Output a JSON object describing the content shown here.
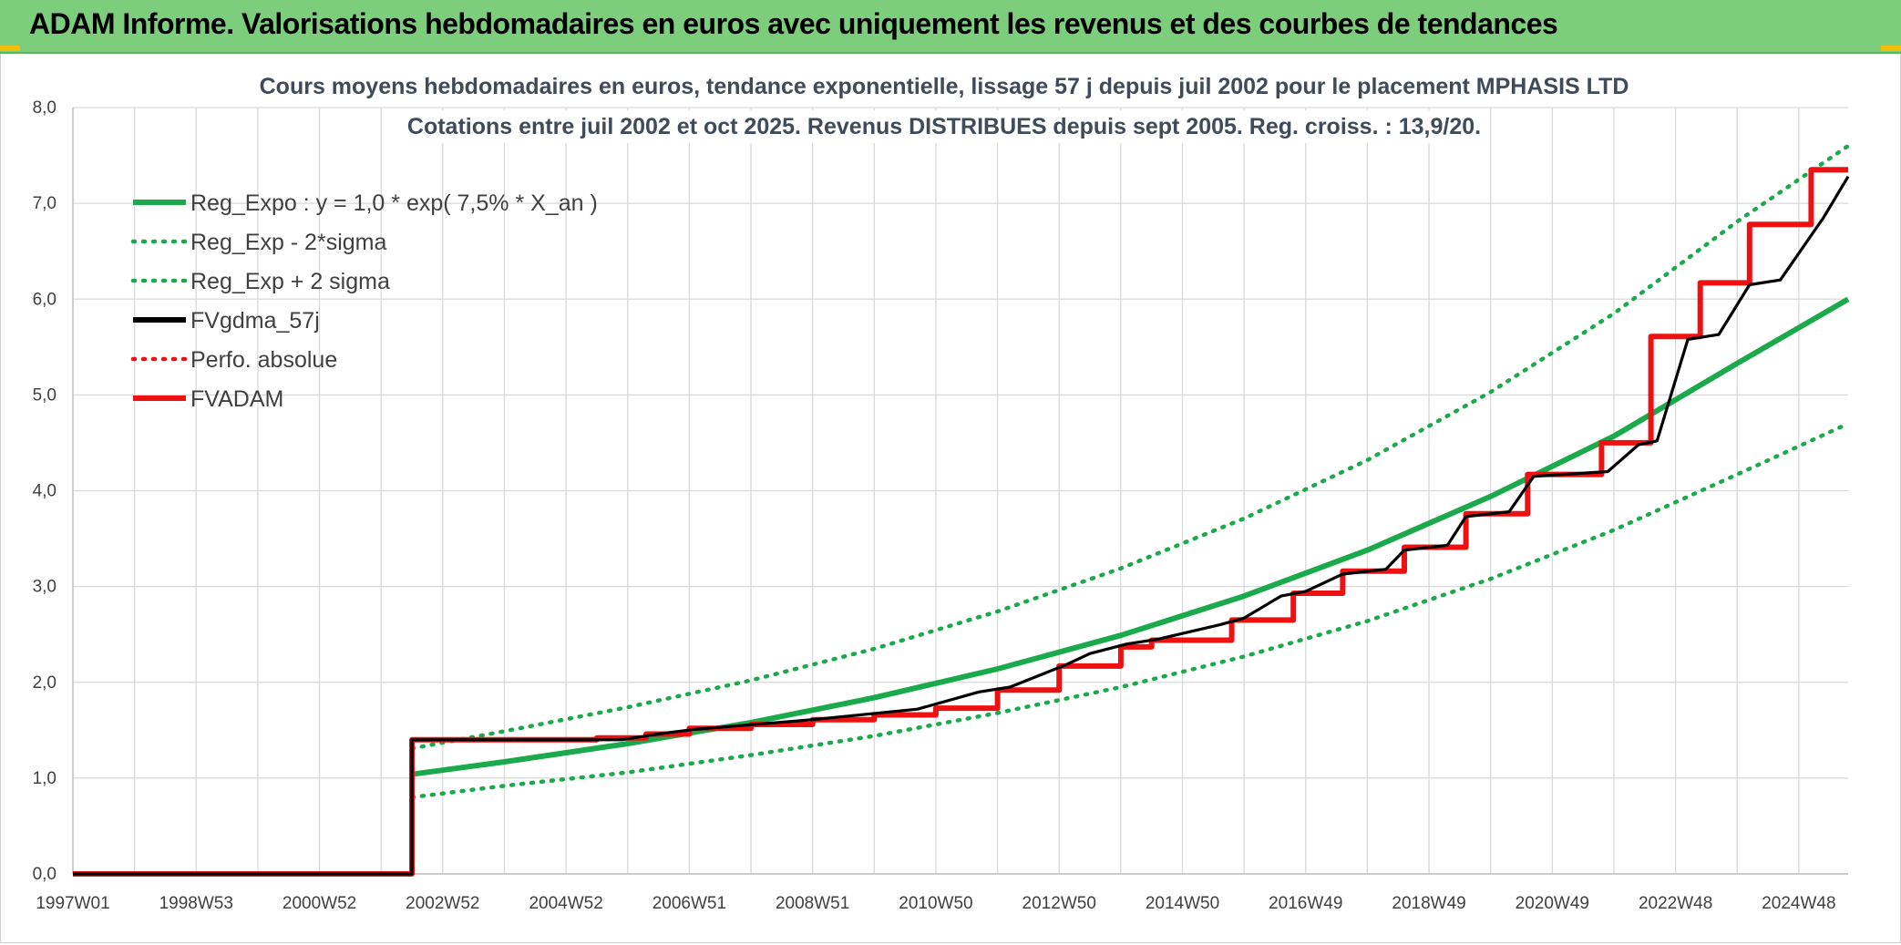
{
  "banner": {
    "title": "ADAM Informe. Valorisations hebdomadaires en euros avec uniquement les revenus et des courbes de tendances"
  },
  "colors": {
    "banner_bg": "#7ccd7c",
    "reg_expo": "#1aaa4b",
    "fv_gdma": "#000000",
    "fv_adam": "#ee1111",
    "perfo": "#ee1111",
    "grid": "#d9d9d9"
  },
  "chart_data": {
    "type": "line",
    "title": "Cours moyens hebdomadaires en euros, tendance exponentielle, lissage 57 j depuis juil 2002 pour le placement MPHASIS LTD",
    "subtitle": "Cotations entre juil 2002 et oct 2025. Revenus DISTRIBUES depuis sept 2005. Reg. croiss. : 13,9/20.",
    "xlabel": "",
    "ylabel": "",
    "x_range": [
      1997.0,
      2025.8
    ],
    "ylim": [
      0,
      8
    ],
    "y_ticks": [
      "0,0",
      "1,0",
      "2,0",
      "3,0",
      "4,0",
      "5,0",
      "6,0",
      "7,0",
      "8,0"
    ],
    "x_ticks": [
      {
        "label": "1997W01",
        "x": 1997.0
      },
      {
        "label": "1998W53",
        "x": 1999.0
      },
      {
        "label": "2000W52",
        "x": 2001.0
      },
      {
        "label": "2002W52",
        "x": 2003.0
      },
      {
        "label": "2004W52",
        "x": 2005.0
      },
      {
        "label": "2006W51",
        "x": 2007.0
      },
      {
        "label": "2008W51",
        "x": 2009.0
      },
      {
        "label": "2010W50",
        "x": 2011.0
      },
      {
        "label": "2012W50",
        "x": 2013.0
      },
      {
        "label": "2014W50",
        "x": 2015.0
      },
      {
        "label": "2016W49",
        "x": 2017.0
      },
      {
        "label": "2018W49",
        "x": 2019.0
      },
      {
        "label": "2020W49",
        "x": 2021.0
      },
      {
        "label": "2022W48",
        "x": 2023.0
      },
      {
        "label": "2024W48",
        "x": 2025.0
      }
    ],
    "grid": true,
    "legend_position": "top-left",
    "series": [
      {
        "name": "Reg_Expo : y = 1,0 * exp( 7,5% *  X_an )",
        "style": "solid",
        "color": "#1aaa4b",
        "x": [
          2002.5,
          2004,
          2006,
          2008,
          2010,
          2012,
          2014,
          2016,
          2018,
          2020,
          2022,
          2024,
          2025.8
        ],
        "y": [
          1.04,
          1.17,
          1.36,
          1.58,
          1.84,
          2.14,
          2.49,
          2.9,
          3.38,
          3.94,
          4.57,
          5.33,
          6.0
        ]
      },
      {
        "name": "Reg_Exp - 2*sigma",
        "style": "dotted",
        "color": "#1aaa4b",
        "x": [
          2002.5,
          2004,
          2006,
          2008,
          2010,
          2012,
          2014,
          2016,
          2018,
          2020,
          2022,
          2024,
          2025.8
        ],
        "y": [
          0.8,
          0.92,
          1.06,
          1.24,
          1.44,
          1.68,
          1.95,
          2.27,
          2.64,
          3.08,
          3.59,
          4.17,
          4.7
        ]
      },
      {
        "name": "Reg_Exp + 2 sigma",
        "style": "dotted",
        "color": "#1aaa4b",
        "x": [
          2002.5,
          2004,
          2006,
          2008,
          2010,
          2012,
          2014,
          2016,
          2018,
          2020,
          2022,
          2024,
          2025.8
        ],
        "y": [
          1.31,
          1.49,
          1.74,
          2.02,
          2.35,
          2.74,
          3.19,
          3.71,
          4.32,
          5.03,
          5.85,
          6.81,
          7.6
        ]
      },
      {
        "name": "FVgdma_57j",
        "style": "solid",
        "color": "#000000",
        "x": [
          1997.0,
          2002.5,
          2002.5,
          2005.9,
          2006.2,
          2006.6,
          2007.1,
          2009.0,
          2010.7,
          2011.7,
          2012.2,
          2013.1,
          2013.5,
          2014.1,
          2014.6,
          2015.6,
          2016.0,
          2016.6,
          2017.0,
          2017.6,
          2018.3,
          2018.6,
          2019.3,
          2019.6,
          2020.3,
          2020.7,
          2021.9,
          2022.4,
          2022.7,
          2023.2,
          2023.7,
          2024.2,
          2024.7,
          2025.4,
          2025.8
        ],
        "y": [
          0.0,
          0.0,
          1.4,
          1.4,
          1.43,
          1.47,
          1.51,
          1.61,
          1.72,
          1.9,
          1.95,
          2.18,
          2.3,
          2.4,
          2.45,
          2.6,
          2.67,
          2.9,
          2.95,
          3.13,
          3.18,
          3.38,
          3.43,
          3.73,
          3.78,
          4.15,
          4.2,
          4.48,
          4.52,
          5.58,
          5.63,
          6.15,
          6.2,
          6.85,
          7.28
        ]
      },
      {
        "name": "Perfo. absolue",
        "style": "dotted",
        "color": "#ee1111",
        "x": [],
        "y": []
      },
      {
        "name": "FVADAM",
        "style": "solid",
        "color": "#ee1111",
        "x": [
          1997.0,
          2002.5,
          2002.5,
          2005.5,
          2005.5,
          2006.3,
          2006.3,
          2007.0,
          2007.0,
          2008.0,
          2008.0,
          2009.0,
          2009.0,
          2010.0,
          2010.0,
          2011.0,
          2011.0,
          2012.0,
          2012.0,
          2013.0,
          2013.0,
          2014.0,
          2014.0,
          2014.5,
          2014.5,
          2015.8,
          2015.8,
          2016.8,
          2016.8,
          2017.6,
          2017.6,
          2018.6,
          2018.6,
          2019.6,
          2019.6,
          2020.6,
          2020.6,
          2021.8,
          2021.8,
          2022.6,
          2022.6,
          2023.4,
          2023.4,
          2024.2,
          2024.2,
          2025.2,
          2025.2,
          2025.6,
          2025.6,
          2025.8
        ],
        "y": [
          0.0,
          0.0,
          1.4,
          1.4,
          1.42,
          1.42,
          1.46,
          1.46,
          1.52,
          1.52,
          1.56,
          1.56,
          1.61,
          1.61,
          1.66,
          1.66,
          1.73,
          1.73,
          1.92,
          1.92,
          2.17,
          2.17,
          2.37,
          2.37,
          2.44,
          2.44,
          2.65,
          2.65,
          2.93,
          2.93,
          3.16,
          3.16,
          3.41,
          3.41,
          3.76,
          3.76,
          4.17,
          4.17,
          4.5,
          4.5,
          5.61,
          5.61,
          6.17,
          6.17,
          6.78,
          6.78,
          7.35,
          7.35,
          7.35,
          7.35
        ]
      }
    ]
  }
}
